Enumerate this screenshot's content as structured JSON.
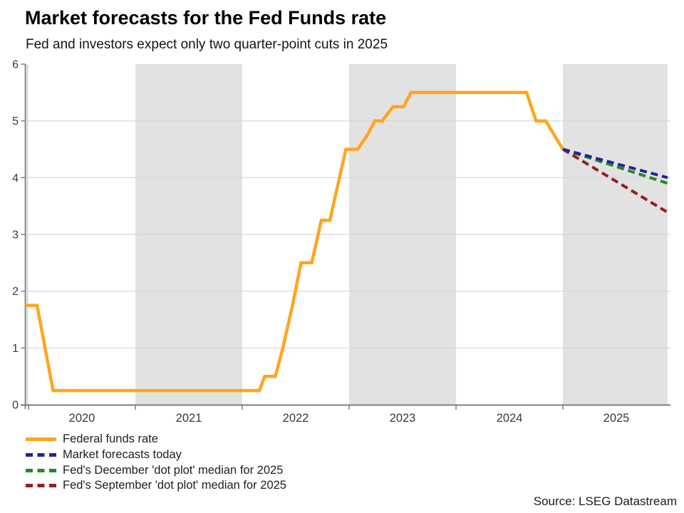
{
  "header": {
    "title": "Market forecasts for the Fed Funds rate",
    "subtitle": "Fed and investors expect only two quarter-point cuts in 2025"
  },
  "source_label": "Source: LSEG Datastream",
  "colors": {
    "fed_funds": "#ffa51e",
    "market_forecast": "#22229e",
    "dec_dot_plot": "#1e8c1e",
    "sep_dot_plot": "#96201e",
    "year_band": "#e2e2e2",
    "grid_line": "#d6d6d6",
    "axis_line": "#7d7d7d",
    "tick_label": "#383838"
  },
  "legend_order": [
    "federal-funds-rate",
    "market-forecasts-today",
    "dec-dot-plot",
    "sep-dot-plot"
  ],
  "chart_data": {
    "type": "line",
    "title": "Market forecasts for the Fed Funds rate",
    "subtitle": "Fed and investors expect only two quarter-point cuts in 2025",
    "xlabel": "",
    "ylabel": "",
    "ylim": [
      0,
      6
    ],
    "yticks": [
      0,
      1,
      2,
      3,
      4,
      5,
      6
    ],
    "xlim": [
      2019.97,
      2026
    ],
    "xticks": [
      2020,
      2021,
      2022,
      2023,
      2024,
      2025
    ],
    "xtick_labels": [
      "2020",
      "2021",
      "2022",
      "2023",
      "2024",
      "2025"
    ],
    "grid": "horizontal",
    "legend_position": "bottom-left",
    "shaded_bands": [
      [
        2019.97,
        2020
      ],
      [
        2021,
        2022
      ],
      [
        2023,
        2024
      ],
      [
        2025,
        2025.98
      ]
    ],
    "series": [
      {
        "id": "federal-funds-rate",
        "name": "Federal funds rate",
        "color": "#ffa51e",
        "dash": false,
        "width": 4.5,
        "points": [
          [
            2019.97,
            1.75
          ],
          [
            2020.08,
            1.75
          ],
          [
            2020.23,
            0.25
          ],
          [
            2022.16,
            0.25
          ],
          [
            2022.21,
            0.5
          ],
          [
            2022.31,
            0.5
          ],
          [
            2022.38,
            1.0
          ],
          [
            2022.47,
            1.75
          ],
          [
            2022.55,
            2.5
          ],
          [
            2022.65,
            2.5
          ],
          [
            2022.74,
            3.25
          ],
          [
            2022.82,
            3.25
          ],
          [
            2022.91,
            4.0
          ],
          [
            2022.97,
            4.5
          ],
          [
            2023.08,
            4.5
          ],
          [
            2023.17,
            4.75
          ],
          [
            2023.24,
            5.0
          ],
          [
            2023.31,
            5.0
          ],
          [
            2023.41,
            5.25
          ],
          [
            2023.51,
            5.25
          ],
          [
            2023.58,
            5.5
          ],
          [
            2024.66,
            5.5
          ],
          [
            2024.75,
            5.0
          ],
          [
            2024.84,
            5.0
          ],
          [
            2025.0,
            4.5
          ]
        ]
      },
      {
        "id": "sep-dot-plot",
        "name": "Fed's September 'dot plot' median for 2025",
        "color": "#96201e",
        "dash": true,
        "width": 4,
        "points": [
          [
            2025.0,
            4.5
          ],
          [
            2025.97,
            3.4
          ]
        ]
      },
      {
        "id": "dec-dot-plot",
        "name": "Fed's December 'dot plot' median for 2025",
        "color": "#1e8c1e",
        "dash": true,
        "width": 4,
        "points": [
          [
            2025.0,
            4.5
          ],
          [
            2025.98,
            3.9
          ]
        ]
      },
      {
        "id": "market-forecasts-today",
        "name": "Market forecasts today",
        "color": "#22229e",
        "dash": true,
        "width": 4,
        "points": [
          [
            2025.0,
            4.5
          ],
          [
            2025.98,
            4.0
          ]
        ]
      }
    ]
  }
}
